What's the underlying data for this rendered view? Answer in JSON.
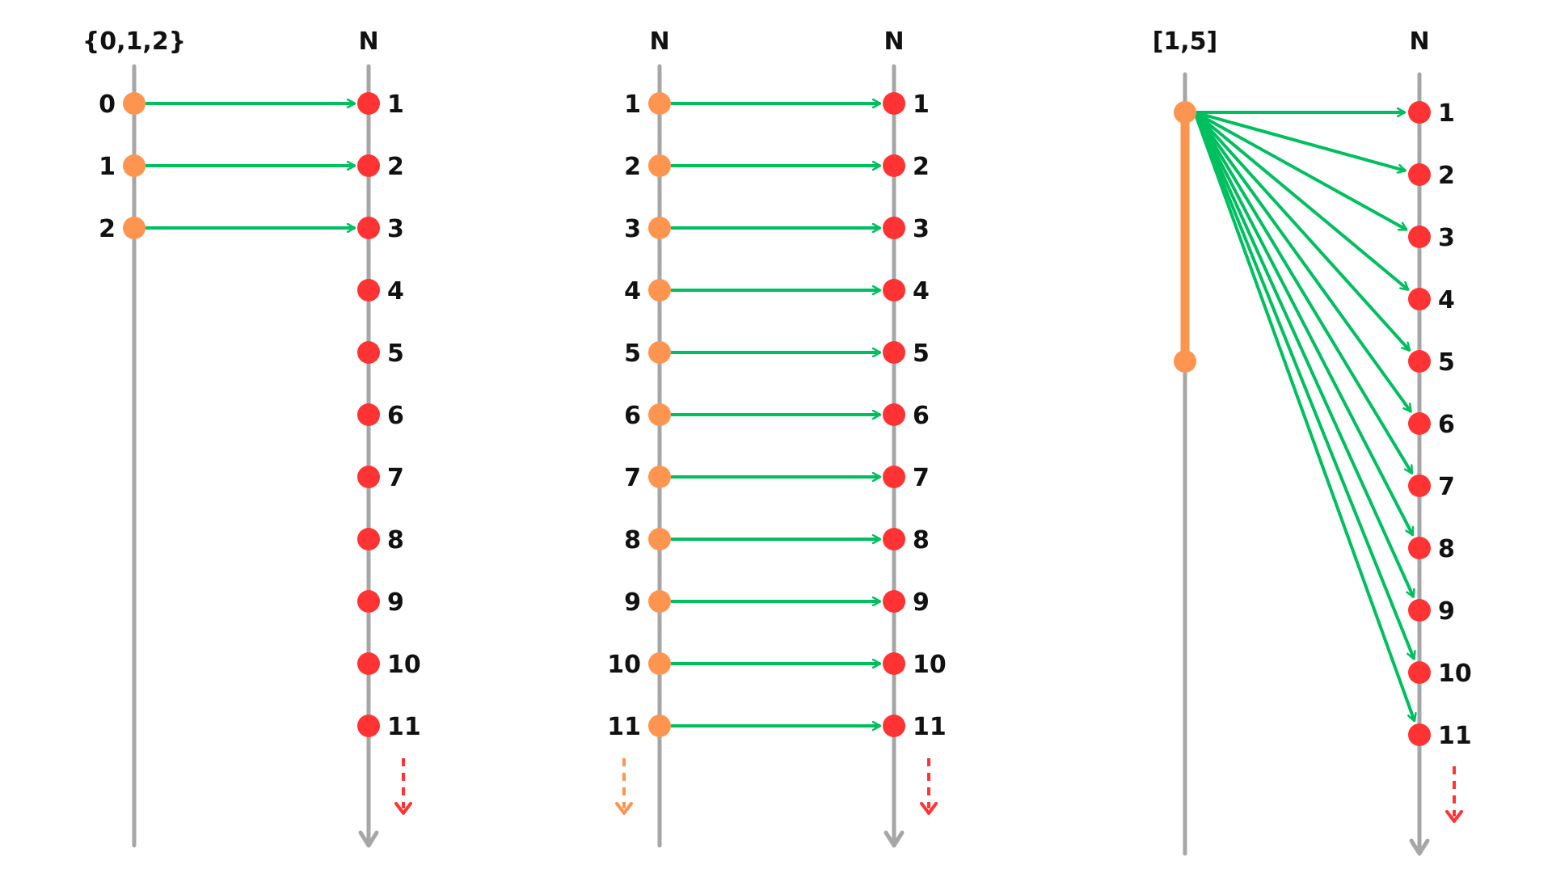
{
  "colors": {
    "axis": "#a6a6a6",
    "source_dot": "#fd9550",
    "target_dot": "#ff3333",
    "arrow": "#00bf5f",
    "interval": "#fd9550"
  },
  "panels": [
    {
      "source_title": "{0,1,2}",
      "target_title": "N",
      "source_labels": [
        "0",
        "1",
        "2"
      ],
      "target_labels": [
        "1",
        "2",
        "3",
        "4",
        "5",
        "6",
        "7",
        "8",
        "9",
        "10",
        "11"
      ],
      "mappings": [
        [
          0,
          0
        ],
        [
          1,
          1
        ],
        [
          2,
          2
        ]
      ]
    },
    {
      "source_title": "N",
      "target_title": "N",
      "source_labels": [
        "1",
        "2",
        "3",
        "4",
        "5",
        "6",
        "7",
        "8",
        "9",
        "10",
        "11"
      ],
      "target_labels": [
        "1",
        "2",
        "3",
        "4",
        "5",
        "6",
        "7",
        "8",
        "9",
        "10",
        "11"
      ],
      "mappings": [
        [
          0,
          0
        ],
        [
          1,
          1
        ],
        [
          2,
          2
        ],
        [
          3,
          3
        ],
        [
          4,
          4
        ],
        [
          5,
          5
        ],
        [
          6,
          6
        ],
        [
          7,
          7
        ],
        [
          8,
          8
        ],
        [
          9,
          9
        ],
        [
          10,
          10
        ]
      ]
    },
    {
      "source_title": "[1,5]",
      "target_title": "N",
      "source_labels": [],
      "target_labels": [
        "1",
        "2",
        "3",
        "4",
        "5",
        "6",
        "7",
        "8",
        "9",
        "10",
        "11"
      ],
      "mappings": []
    }
  ]
}
